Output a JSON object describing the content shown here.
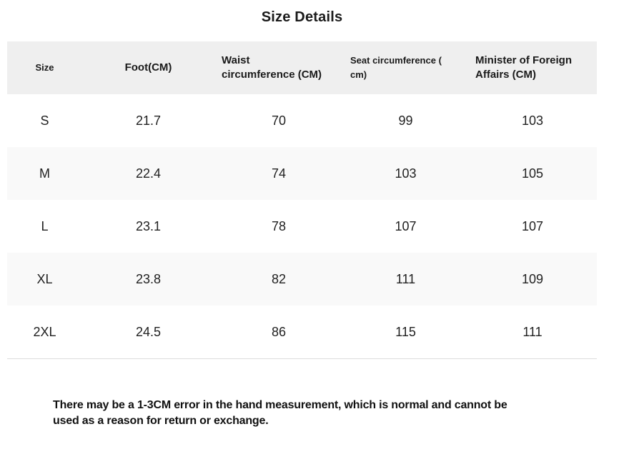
{
  "title": "Size Details",
  "table": {
    "columns": [
      "Size",
      "Foot(CM)",
      "Waist\ncircumference (CM)",
      "Seat circumference (\ncm)",
      "Minister of Foreign\nAffairs (CM)"
    ],
    "rows": [
      [
        "S",
        "21.7",
        "70",
        "99",
        "103"
      ],
      [
        "M",
        "22.4",
        "74",
        "103",
        "105"
      ],
      [
        "L",
        "23.1",
        "78",
        "107",
        "107"
      ],
      [
        "XL",
        "23.8",
        "82",
        "111",
        "109"
      ],
      [
        "2XL",
        "24.5",
        "86",
        "115",
        "111"
      ]
    ]
  },
  "note": "There may be a 1-3CM error in the hand measurement, which is normal and cannot be\nused as a reason for return or exchange.",
  "colors": {
    "header_bg": "#efefef",
    "stripe_bg": "#f9f9f9",
    "border": "#dddddd",
    "text": "#1a1a1a"
  }
}
